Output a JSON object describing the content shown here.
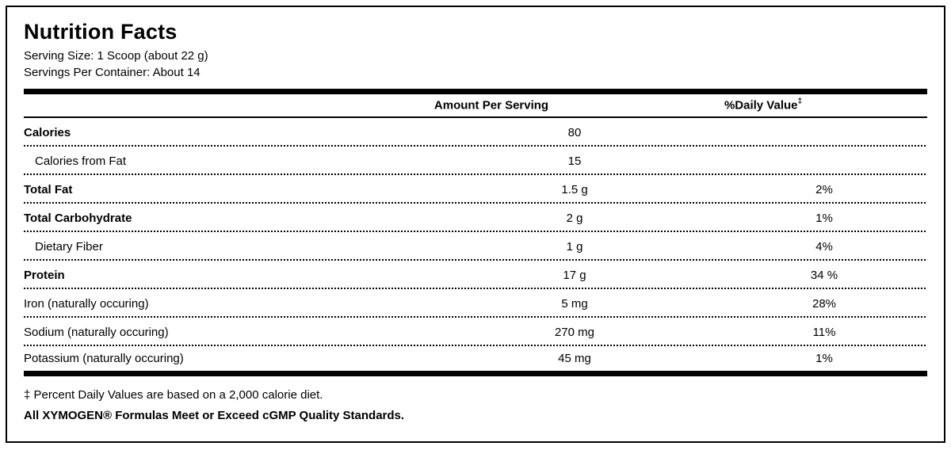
{
  "label": {
    "title": "Nutrition Facts",
    "serving_size": "Serving Size: 1 Scoop (about 22 g)",
    "servings_per_container": "Servings Per Container: About 14",
    "columns": {
      "amount": "Amount Per Serving",
      "daily_value": "%Daily Value",
      "daily_value_mark": "‡"
    },
    "rows": [
      {
        "name": "Calories",
        "amount": "80",
        "dv": "",
        "bold": true,
        "indent": false
      },
      {
        "name": "Calories from Fat",
        "amount": "15",
        "dv": "",
        "bold": false,
        "indent": true
      },
      {
        "name": "Total Fat",
        "amount": "1.5 g",
        "dv": "2%",
        "bold": true,
        "indent": false
      },
      {
        "name": "Total Carbohydrate",
        "amount": "2 g",
        "dv": "1%",
        "bold": true,
        "indent": false
      },
      {
        "name": "Dietary Fiber",
        "amount": "1 g",
        "dv": "4%",
        "bold": false,
        "indent": true
      },
      {
        "name": "Protein",
        "amount": "17 g",
        "dv": "34 %",
        "bold": true,
        "indent": false
      },
      {
        "name": "Iron (naturally occuring)",
        "amount": "5 mg",
        "dv": "28%",
        "bold": false,
        "indent": false
      },
      {
        "name": "Sodium (naturally occuring)",
        "amount": "270 mg",
        "dv": "11%",
        "bold": false,
        "indent": false
      },
      {
        "name": "Potassium (naturally occuring)",
        "amount": "45 mg",
        "dv": "1%",
        "bold": false,
        "indent": false
      }
    ],
    "footnotes": {
      "daily_value_note": "‡ Percent Daily Values are based on a 2,000 calorie diet.",
      "quality_note": "All XYMOGEN® Formulas Meet or Exceed cGMP Quality Standards."
    }
  }
}
